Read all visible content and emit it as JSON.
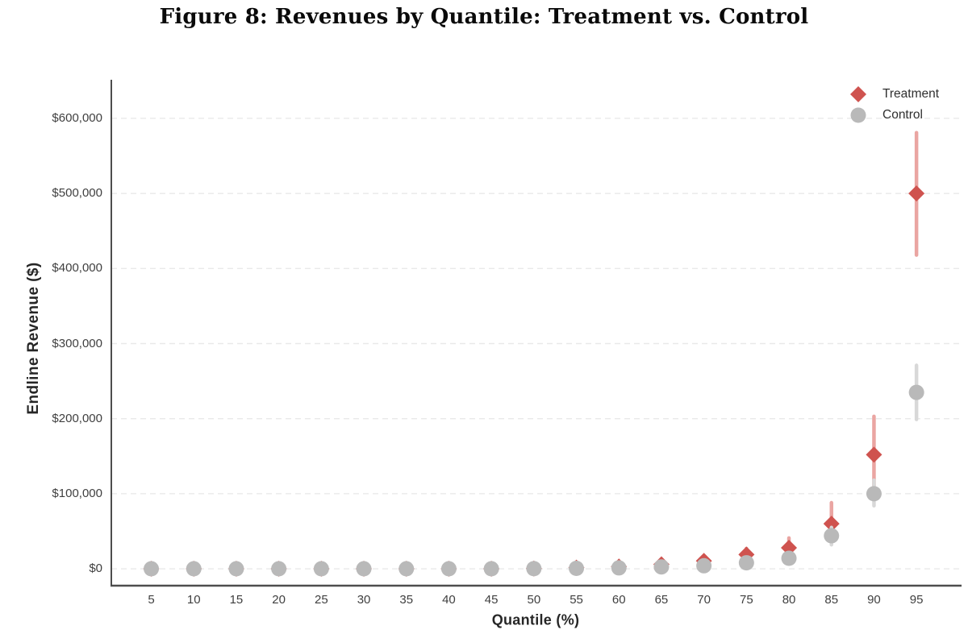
{
  "title": "Figure 8: Revenues by Quantile: Treatment vs. Control",
  "chart_data": {
    "type": "scatter",
    "title": "Figure 8: Revenues by Quantile: Treatment vs. Control",
    "xlabel": "Quantile (%)",
    "ylabel": "Endline Revenue ($)",
    "x": [
      5,
      10,
      15,
      20,
      25,
      30,
      35,
      40,
      45,
      50,
      55,
      60,
      65,
      70,
      75,
      80,
      85,
      90,
      95
    ],
    "x_tick_labels": [
      "5",
      "10",
      "15",
      "20",
      "25",
      "30",
      "35",
      "40",
      "45",
      "50",
      "55",
      "60",
      "65",
      "70",
      "75",
      "80",
      "85",
      "90",
      "95"
    ],
    "y_ticks": [
      0,
      100000,
      200000,
      300000,
      400000,
      500000,
      600000
    ],
    "y_tick_labels": [
      "$0",
      "$100,000",
      "$200,000",
      "$300,000",
      "$400,000",
      "$500,000",
      "$600,000"
    ],
    "xlim": [
      0.3,
      100.3
    ],
    "ylim": [
      -22500,
      651500
    ],
    "grid": "horizontal-dashed",
    "legend_position": "top-right",
    "series": [
      {
        "name": "Treatment",
        "marker": "diamond",
        "color": "#CF534F",
        "error_color": "#EAA5A2",
        "values": [
          0,
          0,
          0,
          0,
          0,
          0,
          0,
          0,
          0,
          300,
          1500,
          3000,
          6000,
          10500,
          19000,
          28000,
          60000,
          152000,
          500000
        ],
        "ci_low": [
          0,
          0,
          0,
          0,
          0,
          0,
          0,
          0,
          0,
          100,
          500,
          1000,
          2500,
          5000,
          11000,
          16000,
          35000,
          108000,
          418000
        ],
        "ci_high": [
          0,
          0,
          0,
          0,
          0,
          0,
          0,
          0,
          0,
          700,
          3000,
          5500,
          10000,
          17000,
          27000,
          41000,
          88000,
          203000,
          581000
        ]
      },
      {
        "name": "Control",
        "marker": "circle",
        "color": "#B9B9B9",
        "error_color": "#D8D8D8",
        "values": [
          0,
          0,
          0,
          0,
          0,
          0,
          0,
          0,
          0,
          200,
          600,
          1200,
          2500,
          4000,
          8000,
          14000,
          44000,
          100000,
          235000
        ],
        "ci_low": [
          0,
          0,
          0,
          0,
          0,
          0,
          0,
          0,
          0,
          100,
          300,
          600,
          1200,
          2000,
          4000,
          8000,
          32000,
          84000,
          199000
        ],
        "ci_high": [
          0,
          0,
          0,
          0,
          0,
          0,
          0,
          0,
          0,
          400,
          1200,
          2500,
          4500,
          7000,
          12000,
          20000,
          55000,
          118000,
          271000
        ]
      }
    ]
  },
  "colors": {
    "grid": "#E9E9E9",
    "spine": "#4D4D4D",
    "tick_text": "#3F3F3F",
    "title_text": "#0A0A0A"
  }
}
